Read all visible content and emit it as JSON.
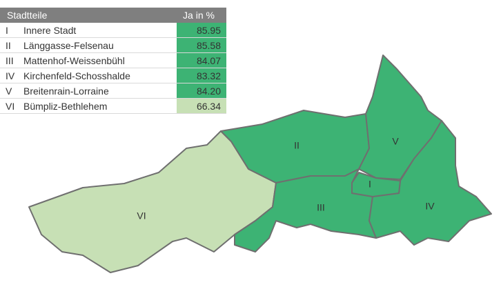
{
  "table": {
    "headers": [
      "Stadtteile",
      "Ja in %"
    ],
    "rows": [
      {
        "code": "I",
        "name": "Innere Stadt",
        "value": "85.95",
        "color": "#3db374"
      },
      {
        "code": "II",
        "name": "Länggasse-Felsenau",
        "value": "85.58",
        "color": "#3db374"
      },
      {
        "code": "III",
        "name": "Mattenhof-Weissenbühl",
        "value": "84.07",
        "color": "#3db374"
      },
      {
        "code": "IV",
        "name": "Kirchenfeld-Schosshalde",
        "value": "83.32",
        "color": "#3db374"
      },
      {
        "code": "V",
        "name": "Breitenrain-Lorraine",
        "value": "84.20",
        "color": "#3db374"
      },
      {
        "code": "VI",
        "name": "Bümpliz-Bethlehem",
        "value": "66.34",
        "color": "#c7e0b5"
      }
    ]
  }
}
